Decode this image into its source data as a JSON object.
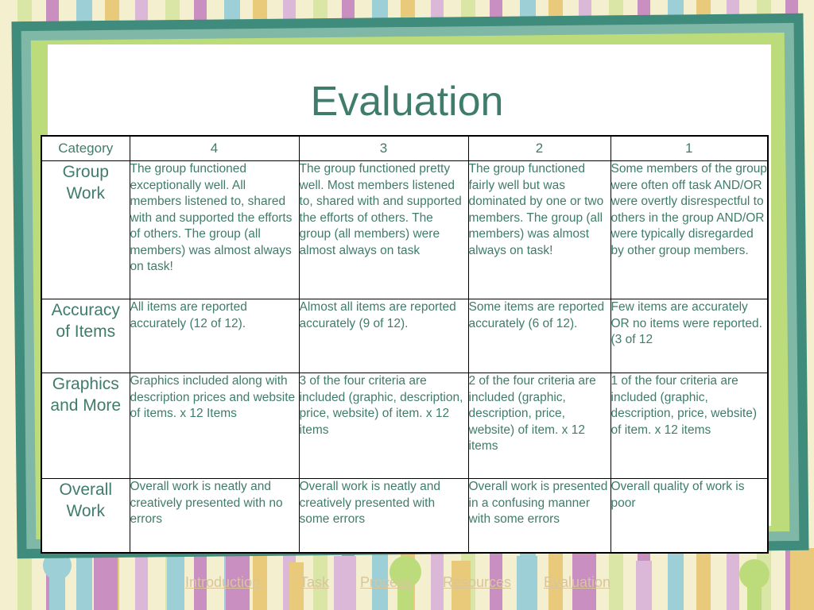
{
  "slide": {
    "title": "Evaluation"
  },
  "rubric": {
    "headers": [
      "Category",
      "4",
      "3",
      "2",
      "1"
    ],
    "rows": [
      {
        "category": "Group Work",
        "cells": [
          "The group functioned exceptionally well. All members listened to, shared with and supported the efforts of others. The group (all members) was almost always on task!",
          "The group functioned pretty well. Most members listened to, shared with and supported the efforts of others. The group (all members) were almost always on task",
          "The group functioned fairly well but was dominated by one or two members. The group (all members) was almost always on task!",
          "Some members of the group were often off task AND/OR were overtly disrespectful to others in the group AND/OR were typically disregarded by other group members."
        ]
      },
      {
        "category": "Accuracy of Items",
        "cells": [
          "All items are reported accurately (12 of 12).",
          "Almost all items are reported accurately (9 of 12).",
          "Some items are reported accurately (6 of 12).",
          "Few items are accurately OR no items were reported. (3 of 12"
        ]
      },
      {
        "category": "Graphics and More",
        "cells": [
          "Graphics included along with description prices and website of items. x 12 Items",
          "3 of the four criteria are included (graphic, description, price, website) of item. x 12 items",
          "2 of the four criteria are included (graphic, description, price, website) of item. x 12 items",
          "1 of the four criteria are included (graphic, description, price, website) of item. x 12 items"
        ]
      },
      {
        "category": "Overall Work",
        "cells": [
          "Overall work is neatly and creatively presented with no errors",
          "Overall work is neatly and creatively presented with some errors",
          "Overall work is presented in a confusing manner with some errors",
          "Overall quality of work is poor"
        ]
      }
    ]
  },
  "nav": {
    "links": [
      "Introduction",
      "Task",
      "Process",
      "Resources",
      "Evaluation"
    ]
  },
  "colors": {
    "text_teal": "#3f7c6c",
    "frame_dark": "#3f8b7c",
    "frame_light_green": "#bcdc7c",
    "link_color": "#d9c59a"
  }
}
